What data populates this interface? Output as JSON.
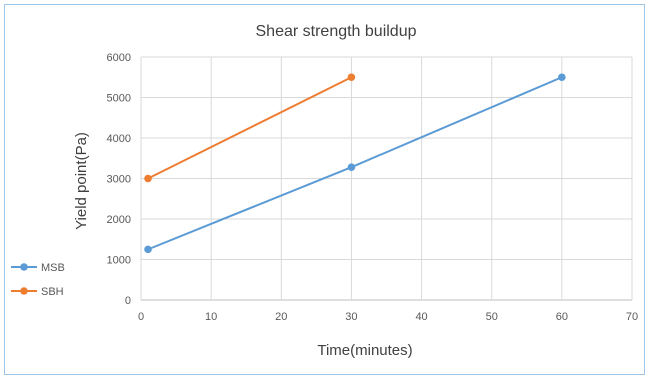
{
  "chart_data": {
    "type": "line",
    "title": "Shear strength buildup",
    "xlabel": "Time(minutes)",
    "ylabel": "Yield point(Pa)",
    "xlim": [
      0,
      70
    ],
    "ylim": [
      0,
      6000
    ],
    "xticks": [
      0,
      10,
      20,
      30,
      40,
      50,
      60,
      70
    ],
    "yticks": [
      0,
      1000,
      2000,
      3000,
      4000,
      5000,
      6000
    ],
    "grid": true,
    "legend_position": "left",
    "series": [
      {
        "name": "MSB",
        "color": "#5b9bd5",
        "x": [
          1,
          30,
          60
        ],
        "y": [
          1250,
          3280,
          5500
        ]
      },
      {
        "name": "SBH",
        "color": "#ed7d31",
        "x": [
          1,
          30
        ],
        "y": [
          3000,
          5500
        ]
      }
    ]
  }
}
